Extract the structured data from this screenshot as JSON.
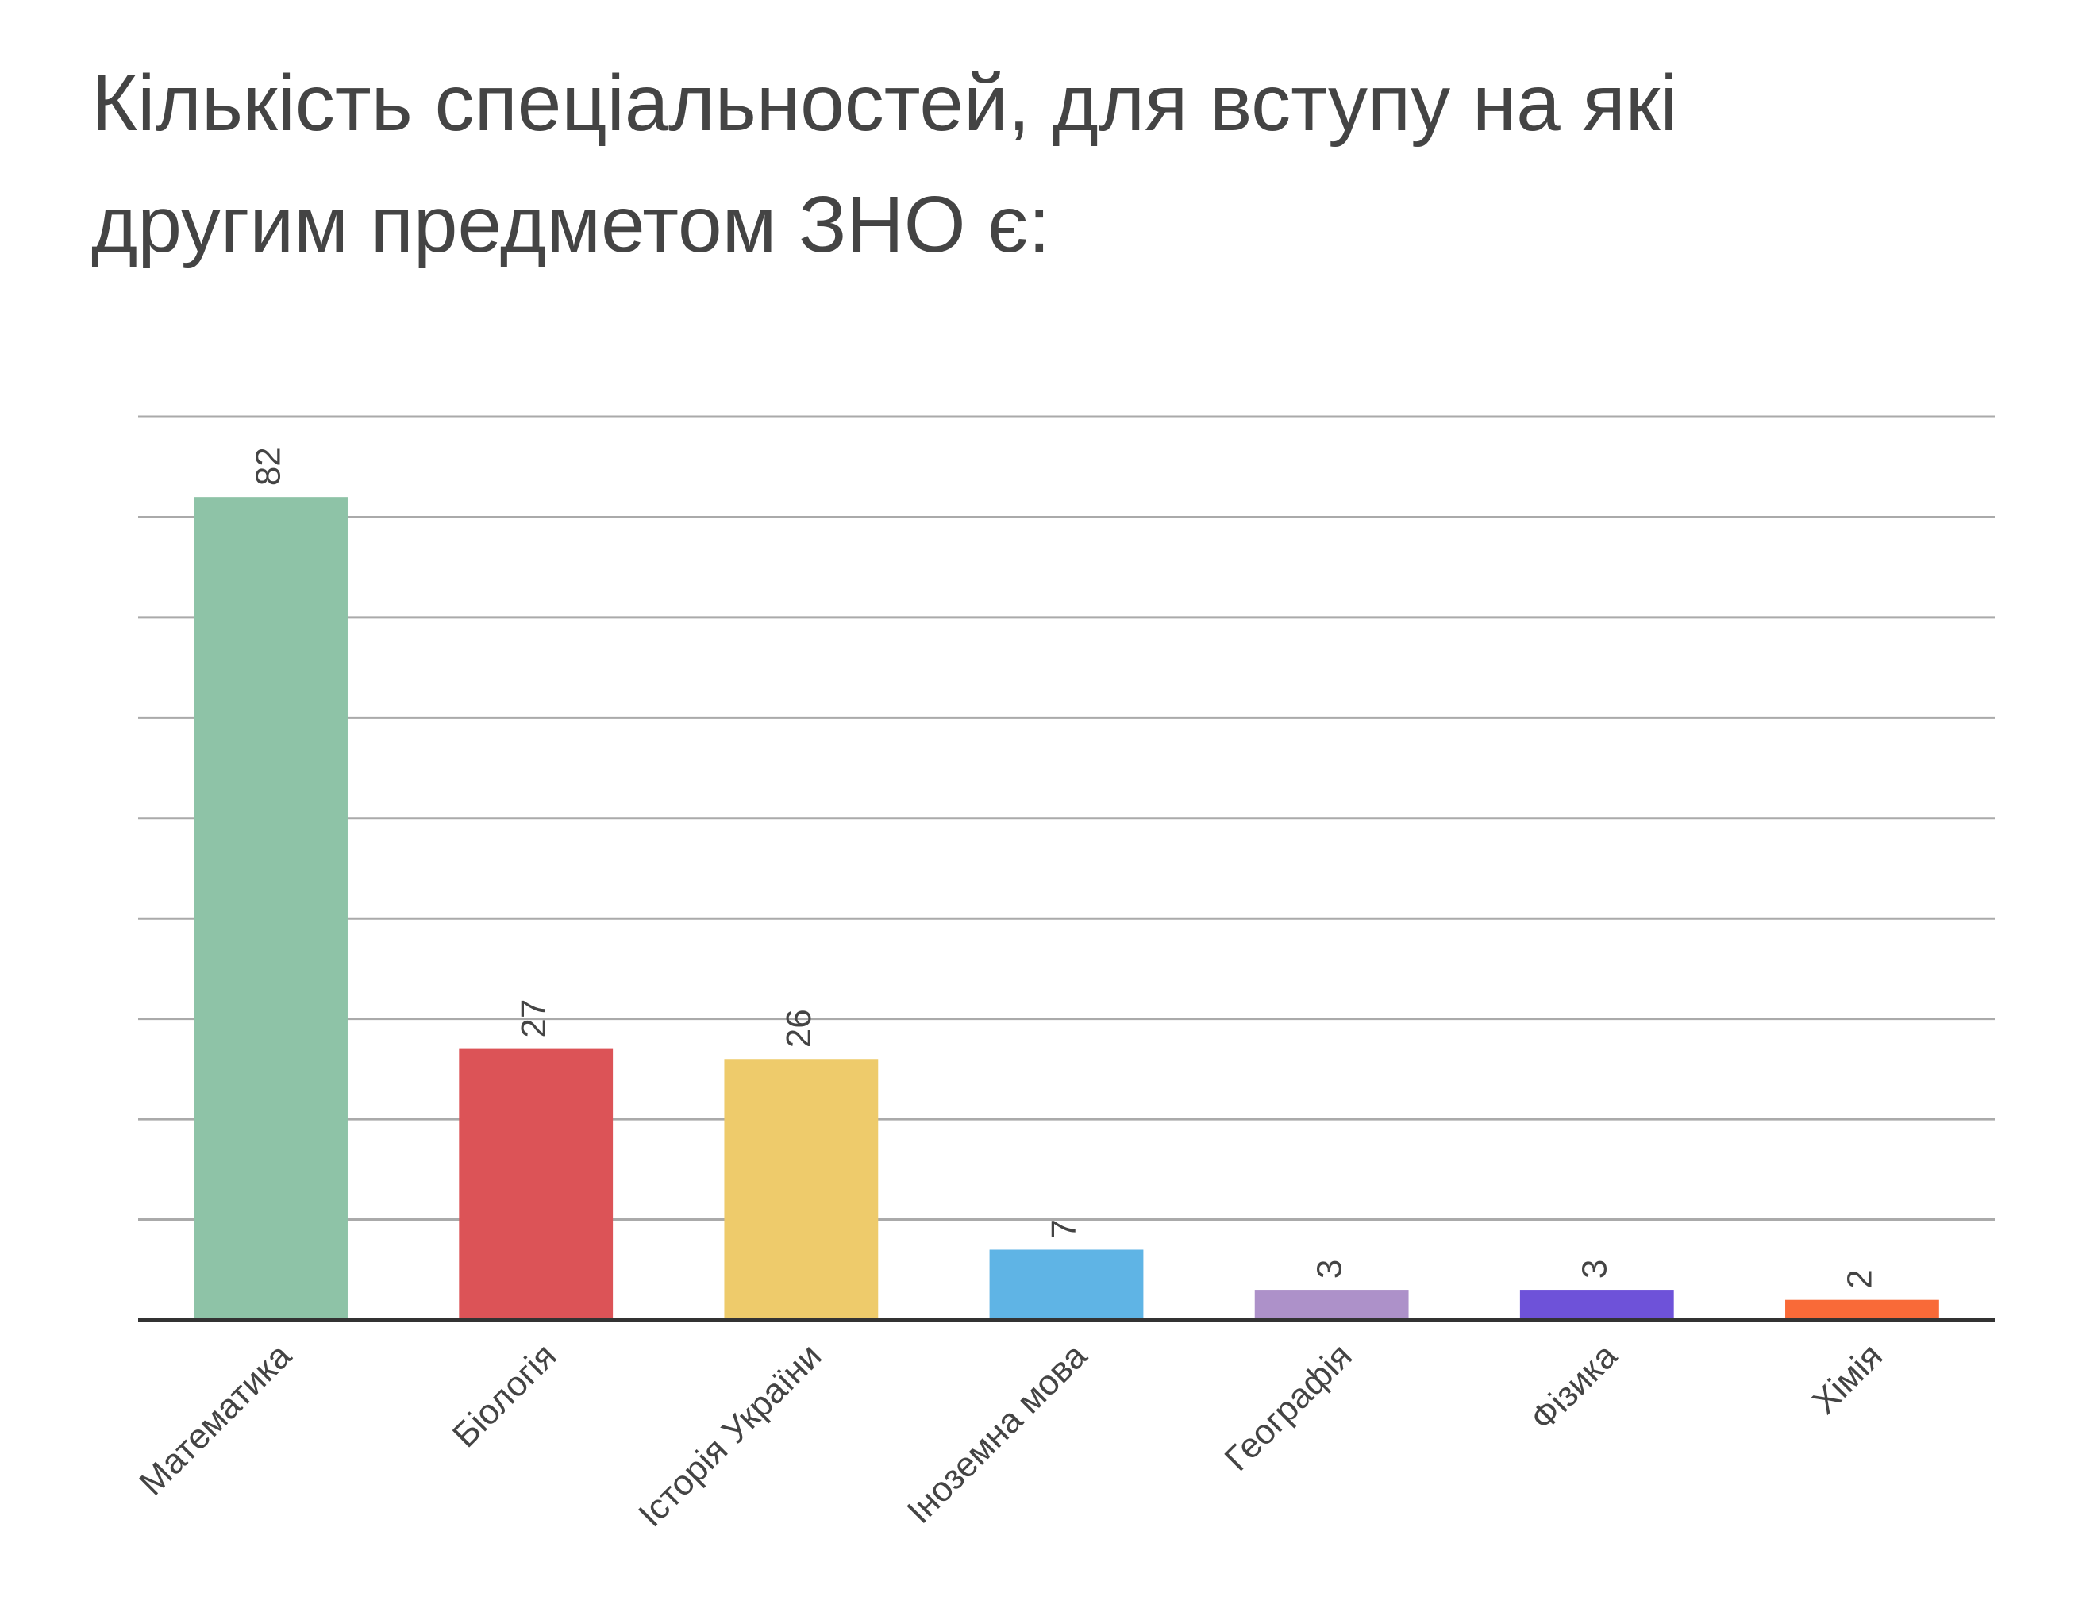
{
  "chart_data": {
    "type": "bar",
    "title": [
      "Кількість спеціальностей, для вступу на які",
      "другим предметом ЗНО є:"
    ],
    "categories": [
      "Математика",
      "Біологія",
      "Історія України",
      "Іноземна мова",
      "Географія",
      "Фізика",
      "Хімія"
    ],
    "values": [
      82,
      27,
      26,
      7,
      3,
      3,
      2
    ],
    "colors": [
      "#8ec3a7",
      "#dc5357",
      "#eecb6b",
      "#5fb4e5",
      "#ad91c9",
      "#6e52d9",
      "#f96a38"
    ],
    "ylim": [
      0,
      90
    ],
    "yticks": [
      0,
      10,
      20,
      30,
      40,
      50,
      60,
      70,
      80,
      90
    ],
    "grid": true
  }
}
